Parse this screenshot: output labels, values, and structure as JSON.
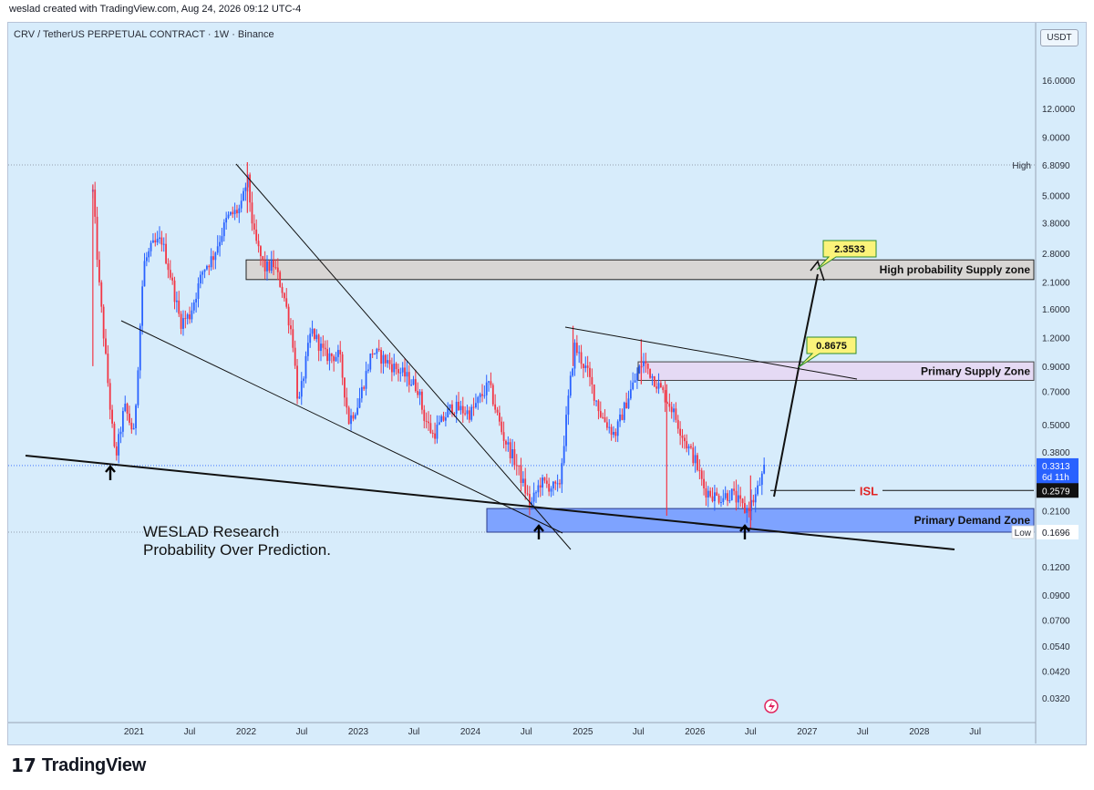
{
  "header": {
    "created_by": "weslad created with TradingView.com, Aug 24, 2026 09:12 UTC-4"
  },
  "symbol": {
    "title": "CRV / TetherUS PERPETUAL CONTRACT · 1W · Binance",
    "currency": "USDT"
  },
  "footer": {
    "logo_text": "TradingView",
    "logo_icon": "tradingview-logo-icon"
  },
  "colors": {
    "background": "#d7ecfb",
    "up": "#2962ff",
    "down": "#f23645",
    "supply_zone": "#d8d5d2",
    "primary_supply": "#e6d9f3",
    "demand_zone": "#6f97ff"
  },
  "chart_data": {
    "type": "candlestick",
    "y_scale": "log",
    "y_ticks": [
      "16.0000",
      "12.0000",
      "9.0000",
      "6.8090",
      "5.0000",
      "3.8000",
      "2.8000",
      "2.1000",
      "1.6000",
      "1.2000",
      "0.9000",
      "0.7000",
      "0.5000",
      "0.3800",
      "0.3313",
      "0.2579",
      "0.2100",
      "0.1696",
      "0.1200",
      "0.0900",
      "0.0700",
      "0.0540",
      "0.0420",
      "0.0320"
    ],
    "x_ticks": [
      "2021",
      "Jul",
      "2022",
      "Jul",
      "2023",
      "Jul",
      "2024",
      "Jul",
      "2025",
      "Jul",
      "2026",
      "Jul",
      "2027",
      "Jul",
      "2028",
      "Jul"
    ],
    "price_labels": {
      "high": {
        "label": "High",
        "value": "6.8090"
      },
      "low": {
        "label": "Low",
        "value": "0.1696"
      },
      "last": {
        "value": "0.3313",
        "countdown": "6d 11h"
      },
      "isl": {
        "value": "0.2579"
      }
    },
    "zones": [
      {
        "name": "High probability Supply zone",
        "low": 2.15,
        "high": 2.62
      },
      {
        "name": "Primary Supply Zone",
        "low": 0.78,
        "high": 0.94
      },
      {
        "name": "Primary Demand Zone",
        "low": 0.1696,
        "high": 0.215
      }
    ],
    "targets": [
      "2.3533",
      "0.8675"
    ],
    "annotations": {
      "isl": "ISL",
      "watermark_title": "WESLAD Research",
      "watermark_subtitle": "Probability Over Prediction."
    },
    "price_path": [
      {
        "date": "2020-08-20",
        "value": 5.2
      },
      {
        "date": "2020-09-10",
        "value": 2.0
      },
      {
        "date": "2020-10-15",
        "value": 0.6
      },
      {
        "date": "2020-11-01",
        "value": 0.35
      },
      {
        "date": "2020-12-01",
        "value": 0.6
      },
      {
        "date": "2021-01-01",
        "value": 0.45
      },
      {
        "date": "2021-02-01",
        "value": 2.5
      },
      {
        "date": "2021-03-01",
        "value": 3.0
      },
      {
        "date": "2021-04-01",
        "value": 3.2
      },
      {
        "date": "2021-05-01",
        "value": 2.2
      },
      {
        "date": "2021-06-01",
        "value": 1.4
      },
      {
        "date": "2021-07-01",
        "value": 1.5
      },
      {
        "date": "2021-08-15",
        "value": 2.4
      },
      {
        "date": "2021-09-15",
        "value": 2.7
      },
      {
        "date": "2021-11-01",
        "value": 4.0
      },
      {
        "date": "2021-12-15",
        "value": 4.4
      },
      {
        "date": "2022-01-05",
        "value": 6.0
      },
      {
        "date": "2022-01-25",
        "value": 3.4
      },
      {
        "date": "2022-03-01",
        "value": 2.4
      },
      {
        "date": "2022-04-01",
        "value": 2.5
      },
      {
        "date": "2022-05-01",
        "value": 1.9
      },
      {
        "date": "2022-06-01",
        "value": 1.2
      },
      {
        "date": "2022-06-20",
        "value": 0.6
      },
      {
        "date": "2022-08-01",
        "value": 1.3
      },
      {
        "date": "2022-09-15",
        "value": 1.0
      },
      {
        "date": "2022-11-01",
        "value": 1.0
      },
      {
        "date": "2022-12-01",
        "value": 0.52
      },
      {
        "date": "2023-01-01",
        "value": 0.62
      },
      {
        "date": "2023-02-15",
        "value": 1.05
      },
      {
        "date": "2023-04-01",
        "value": 0.95
      },
      {
        "date": "2023-06-01",
        "value": 0.82
      },
      {
        "date": "2023-07-15",
        "value": 0.72
      },
      {
        "date": "2023-08-01",
        "value": 0.55
      },
      {
        "date": "2023-09-01",
        "value": 0.45
      },
      {
        "date": "2023-11-01",
        "value": 0.6
      },
      {
        "date": "2024-01-01",
        "value": 0.56
      },
      {
        "date": "2024-03-01",
        "value": 0.75
      },
      {
        "date": "2024-04-15",
        "value": 0.45
      },
      {
        "date": "2024-06-01",
        "value": 0.33
      },
      {
        "date": "2024-07-15",
        "value": 0.22
      },
      {
        "date": "2024-08-15",
        "value": 0.28
      },
      {
        "date": "2024-10-15",
        "value": 0.26
      },
      {
        "date": "2024-11-15",
        "value": 0.65
      },
      {
        "date": "2024-12-05",
        "value": 1.1
      },
      {
        "date": "2025-01-15",
        "value": 0.85
      },
      {
        "date": "2025-03-01",
        "value": 0.55
      },
      {
        "date": "2025-04-15",
        "value": 0.45
      },
      {
        "date": "2025-06-01",
        "value": 0.68
      },
      {
        "date": "2025-07-15",
        "value": 0.95
      },
      {
        "date": "2025-09-01",
        "value": 0.75
      },
      {
        "date": "2025-10-15",
        "value": 0.6
      },
      {
        "date": "2025-12-01",
        "value": 0.42
      },
      {
        "date": "2026-01-01",
        "value": 0.35
      },
      {
        "date": "2026-02-01",
        "value": 0.26
      },
      {
        "date": "2026-03-15",
        "value": 0.24
      },
      {
        "date": "2026-05-01",
        "value": 0.25
      },
      {
        "date": "2026-06-15",
        "value": 0.21
      },
      {
        "date": "2026-07-15",
        "value": 0.24
      },
      {
        "date": "2026-08-20",
        "value": 0.3313
      }
    ]
  }
}
